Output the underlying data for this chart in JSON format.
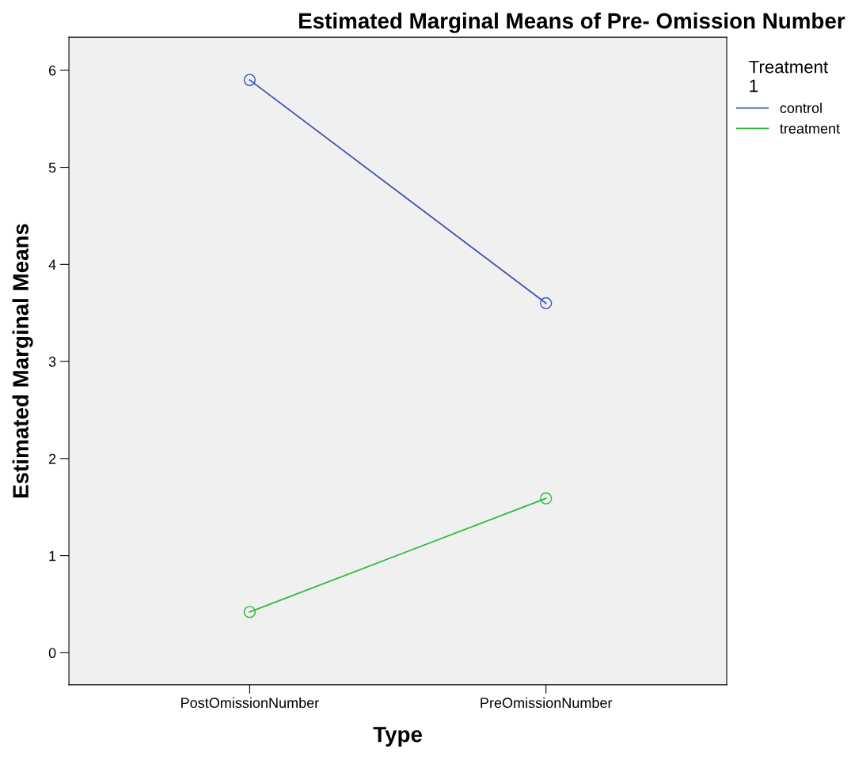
{
  "chart_data": {
    "type": "line",
    "title": "Estimated Marginal Means of Pre- Omission Number",
    "xlabel": "Type",
    "ylabel": "Estimated Marginal Means",
    "legend_title": "Treatment\n1",
    "categories": [
      "PostOmissionNumber",
      "PreOmissionNumber"
    ],
    "series": [
      {
        "name": "control",
        "color": "#3f51b5",
        "values": [
          5.9,
          3.6
        ]
      },
      {
        "name": "treatment",
        "color": "#2db83d",
        "values": [
          0.42,
          1.59
        ]
      }
    ],
    "ylim": [
      -0.33,
      6.34
    ],
    "yticks": [
      0,
      1,
      2,
      3,
      4,
      5,
      6
    ],
    "grid": false,
    "legend": "top right",
    "marker": "circle",
    "line_style": "solid"
  }
}
